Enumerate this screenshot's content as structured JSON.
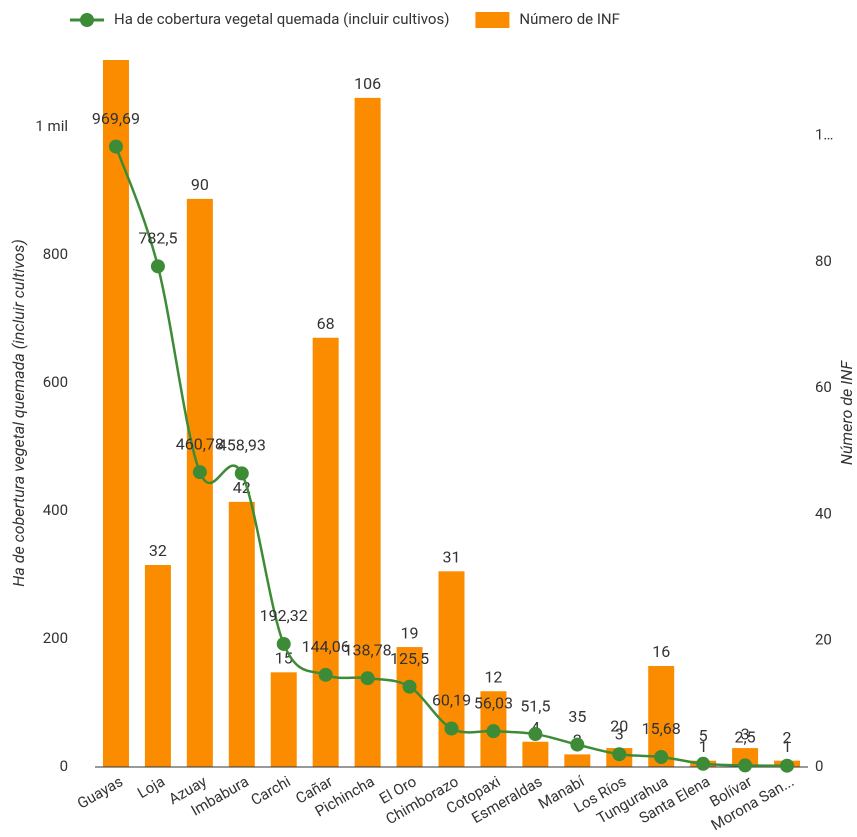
{
  "chart_data": {
    "type": "combo",
    "categories": [
      "Guayas",
      "Loja",
      "Azuay",
      "Imbabura",
      "Carchi",
      "Cañar",
      "Pichincha",
      "El Oro",
      "Chimborazo",
      "Cotopaxi",
      "Esmeraldas",
      "Manabí",
      "Los Ríos",
      "Tungurahua",
      "Santa Elena",
      "Bolívar",
      "Morona San..."
    ],
    "series": [
      {
        "name": "Ha de cobertura vegetal quemada (incluir cultivos)",
        "type": "line",
        "color": "#3d8b37",
        "axis": "y",
        "values": [
          969.69,
          782.5,
          460.78,
          458.93,
          192.32,
          144.06,
          138.78,
          125.5,
          60.19,
          56.03,
          51.5,
          35,
          20,
          15.68,
          5,
          2.5,
          2
        ],
        "value_labels": [
          "969,69",
          "782,5",
          "460,78",
          "458,93",
          "192,32",
          "144,06",
          "138,78",
          "125,5",
          "60,19",
          "56,03",
          "51,5",
          "35",
          "20",
          "15,68",
          "5",
          "2,5",
          "2"
        ]
      },
      {
        "name": "Número de INF",
        "type": "bar",
        "color": "#fb8c00",
        "axis": "y2",
        "values": [
          112,
          32,
          90,
          42,
          15,
          68,
          106,
          19,
          31,
          12,
          4,
          2,
          3,
          16,
          1,
          3,
          1
        ],
        "value_labels": [
          null,
          "32",
          "90",
          "42",
          "15",
          "68",
          "106",
          "19",
          "31",
          "12",
          "4",
          "2",
          "3",
          "16",
          "1",
          "3",
          "1"
        ]
      }
    ],
    "y_label": "Ha de cobertura vegetal quemada (incluir cultivos)",
    "y2_label": "Número de INF",
    "ylim": [
      0,
      1105
    ],
    "yticks": [
      0,
      200,
      400,
      600,
      800,
      {
        "value": 1000,
        "label": "1 mil"
      }
    ],
    "y2lim": [
      0,
      112
    ],
    "y2ticks": [
      0,
      20,
      40,
      60,
      80,
      {
        "value": 100,
        "label": "1…"
      }
    ],
    "legend": "top"
  }
}
